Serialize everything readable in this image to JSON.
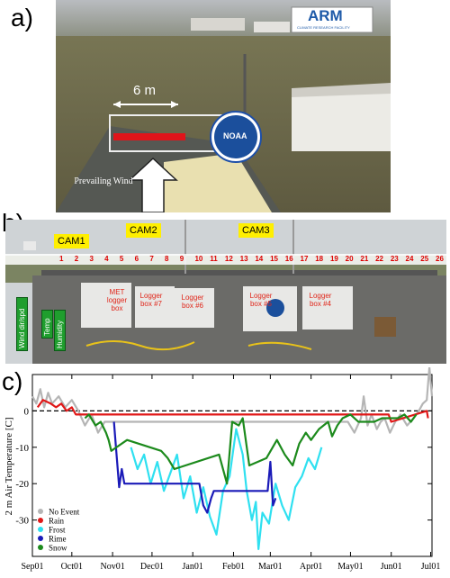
{
  "panels": {
    "a": {
      "label": "a)",
      "width_annotation": "6 m",
      "wind_label": "Prevailing Wind",
      "arm_logo": "ARM",
      "arm_tagline": "CLIMATE RESEARCH FACILITY",
      "noaa_logo": "NOAA"
    },
    "b": {
      "label": "b)",
      "cams": [
        "CAM1",
        "CAM2",
        "CAM3"
      ],
      "numbers": [
        "1",
        "2",
        "3",
        "4",
        "5",
        "6",
        "7",
        "8",
        "9",
        "10",
        "11",
        "12",
        "13",
        "14",
        "15",
        "16",
        "17",
        "18",
        "19",
        "20",
        "21",
        "22",
        "23",
        "24",
        "25",
        "26"
      ],
      "sensor_tags": [
        "Wind dir/spd",
        "Temp",
        "Humidity"
      ],
      "boxes": [
        {
          "label": "MET logger box"
        },
        {
          "label": "Logger box #7"
        },
        {
          "label": "Logger box #6"
        },
        {
          "label": "Logger box #5"
        },
        {
          "label": "Logger box #4"
        }
      ]
    },
    "c": {
      "label": "c)"
    }
  },
  "colors": {
    "no_event": "#b5b5b5",
    "rain": "#e01818",
    "frost": "#2fe0f0",
    "rime": "#1a1ab8",
    "snow": "#1c8a1c"
  },
  "chart_data": {
    "type": "line",
    "title": "",
    "xlabel": "",
    "ylabel": "2 m Air Temperature [C]",
    "ylim": [
      -40,
      10
    ],
    "yticks": [
      0,
      -10,
      -20,
      -30
    ],
    "categories": [
      "Sep01",
      "Oct01",
      "Nov01",
      "Dec01",
      "Jan01",
      "Feb01",
      "Mar01",
      "Apr01",
      "May01",
      "Jun01",
      "Jul01"
    ],
    "zero_line": "dashed",
    "legend_position": "lower-left",
    "series": [
      {
        "name": "No Event",
        "color": "#b5b5b5",
        "points": [
          [
            0,
            4
          ],
          [
            3,
            2
          ],
          [
            6,
            6
          ],
          [
            9,
            1
          ],
          [
            12,
            5
          ],
          [
            15,
            2
          ],
          [
            20,
            4
          ],
          [
            25,
            1
          ],
          [
            30,
            3
          ],
          [
            35,
            0
          ],
          [
            40,
            -4
          ],
          [
            45,
            -1
          ],
          [
            50,
            -6
          ],
          [
            55,
            -3
          ],
          [
            240,
            -3
          ],
          [
            245,
            -6
          ],
          [
            250,
            -2
          ],
          [
            252,
            4
          ],
          [
            255,
            -4
          ],
          [
            258,
            -1
          ],
          [
            262,
            -5
          ],
          [
            265,
            -3
          ],
          [
            268,
            -2
          ],
          [
            272,
            -6
          ],
          [
            276,
            -3
          ],
          [
            280,
            -1
          ],
          [
            285,
            -4
          ],
          [
            290,
            -2
          ],
          [
            294,
            0
          ],
          [
            297,
            2
          ],
          [
            300,
            3
          ],
          [
            302,
            12
          ],
          [
            304,
            4
          ]
        ]
      },
      {
        "name": "Rain",
        "color": "#e01818",
        "points": [
          [
            4,
            1
          ],
          [
            8,
            3
          ],
          [
            14,
            2
          ],
          [
            18,
            1
          ],
          [
            22,
            2
          ],
          [
            26,
            0
          ],
          [
            30,
            1
          ],
          [
            33,
            -1
          ],
          [
            271,
            -1
          ],
          [
            273,
            -3
          ],
          [
            300,
            0
          ],
          [
            301,
            -2
          ]
        ]
      },
      {
        "name": "Frost",
        "color": "#2fe0f0",
        "points": [
          [
            75,
            -10
          ],
          [
            80,
            -16
          ],
          [
            85,
            -12
          ],
          [
            90,
            -20
          ],
          [
            95,
            -14
          ],
          [
            100,
            -22
          ],
          [
            105,
            -17
          ],
          [
            110,
            -12
          ],
          [
            115,
            -24
          ],
          [
            120,
            -18
          ],
          [
            125,
            -28
          ],
          [
            130,
            -21
          ],
          [
            135,
            -29
          ],
          [
            140,
            -34
          ],
          [
            145,
            -22
          ],
          [
            150,
            -18
          ],
          [
            155,
            -5
          ],
          [
            160,
            -12
          ],
          [
            163,
            -22
          ],
          [
            167,
            -30
          ],
          [
            170,
            -25
          ],
          [
            172,
            -38
          ],
          [
            175,
            -28
          ],
          [
            180,
            -31
          ],
          [
            185,
            -20
          ],
          [
            190,
            -26
          ],
          [
            195,
            -30
          ],
          [
            200,
            -21
          ],
          [
            205,
            -18
          ],
          [
            210,
            -13
          ],
          [
            215,
            -16
          ],
          [
            220,
            -10
          ]
        ]
      },
      {
        "name": "Rime",
        "color": "#1a1ab8",
        "points": [
          [
            62,
            -3
          ],
          [
            64,
            -12
          ],
          [
            66,
            -21
          ],
          [
            68,
            -16
          ],
          [
            70,
            -20
          ],
          [
            127,
            -20
          ],
          [
            130,
            -26
          ],
          [
            133,
            -28
          ],
          [
            136,
            -24
          ],
          [
            138,
            -22
          ],
          [
            179,
            -22
          ],
          [
            181,
            -14
          ],
          [
            183,
            -26
          ],
          [
            185,
            -24
          ]
        ]
      },
      {
        "name": "Snow",
        "color": "#1c8a1c",
        "points": [
          [
            40,
            -2
          ],
          [
            43,
            -1
          ],
          [
            48,
            -4
          ],
          [
            52,
            -3
          ],
          [
            56,
            -6
          ],
          [
            58,
            -8
          ],
          [
            60,
            -11
          ],
          [
            72,
            -8
          ],
          [
            98,
            -11
          ],
          [
            103,
            -13
          ],
          [
            108,
            -16
          ],
          [
            142,
            -12
          ],
          [
            148,
            -20
          ],
          [
            152,
            -3
          ],
          [
            157,
            -4
          ],
          [
            160,
            -2
          ],
          [
            165,
            -15
          ],
          [
            178,
            -13
          ],
          [
            186,
            -8
          ],
          [
            192,
            -12
          ],
          [
            198,
            -15
          ],
          [
            203,
            -9
          ],
          [
            208,
            -6
          ],
          [
            212,
            -8
          ],
          [
            218,
            -5
          ],
          [
            225,
            -3
          ],
          [
            228,
            -7
          ],
          [
            232,
            -4
          ],
          [
            236,
            -2
          ],
          [
            242,
            -1
          ],
          [
            248,
            -3
          ],
          [
            260,
            -3
          ],
          [
            266,
            -2
          ],
          [
            278,
            -2
          ],
          [
            283,
            -1
          ],
          [
            288,
            -3
          ],
          [
            292,
            -1
          ]
        ]
      }
    ],
    "legend": [
      "No Event",
      "Rain",
      "Frost",
      "Rime",
      "Snow"
    ]
  }
}
